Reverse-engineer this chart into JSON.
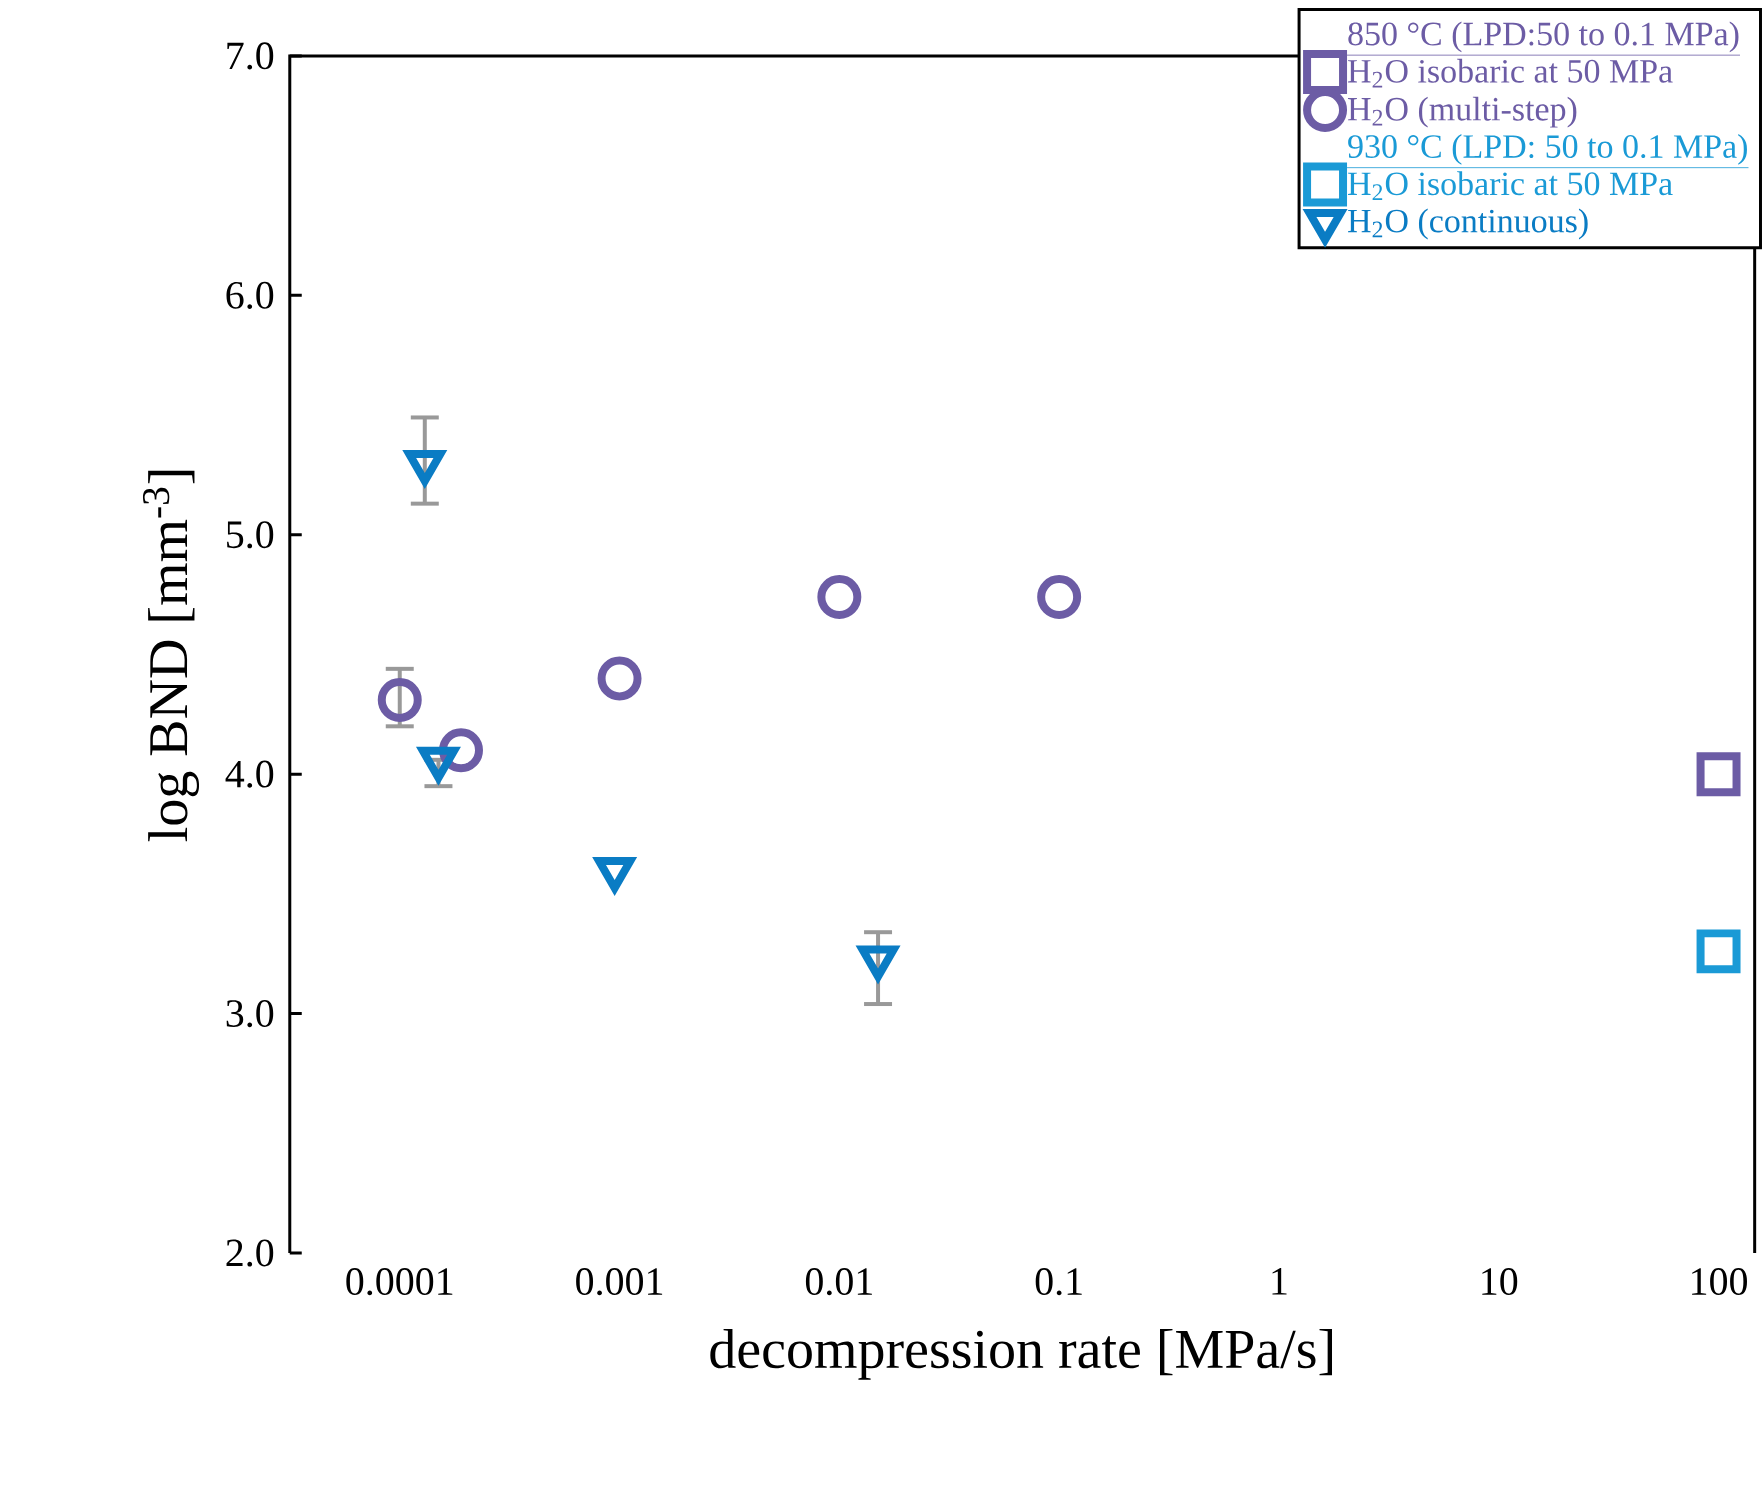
{
  "chart_data": {
    "type": "scatter",
    "xlabel": "decompression rate [MPa/s]",
    "ylabel": "log BND [mm$^{-3}$]",
    "log": "x",
    "xlim": [
      3.16e-05,
      146
    ],
    "ylim": [
      2,
      7
    ],
    "xticks": [
      {
        "value": 0.0001,
        "label": "0.0001"
      },
      {
        "value": 0.001,
        "label": "0.001"
      },
      {
        "value": 0.01,
        "label": "0.01"
      },
      {
        "value": 0.1,
        "label": "0.1"
      },
      {
        "value": 1,
        "label": "1"
      },
      {
        "value": 10,
        "label": "10"
      },
      {
        "value": 100,
        "label": "100"
      }
    ],
    "yticks": [
      {
        "value": 2,
        "label": "2.0"
      },
      {
        "value": 3,
        "label": "3.0"
      },
      {
        "value": 4,
        "label": "4.0"
      },
      {
        "value": 5,
        "label": "5.0"
      },
      {
        "value": 6,
        "label": "6.0"
      },
      {
        "value": 7,
        "label": "7.0"
      }
    ],
    "legend": "top right",
    "annotations": [
      "850 °C (LPD:50 to 0.1 MPa)",
      "930 °C (LPD: 50 to 0.1 MPa)"
    ],
    "series": [
      {
        "name": "H$_{2}$O isobaric at 50 MPa",
        "color": "#6c5ca5",
        "marker": "square",
        "x": [
          100
        ],
        "values": [
          4.0
        ]
      },
      {
        "name": "H$_{2}$O (multi-step)",
        "color": "#6c5ca5",
        "marker": "circle",
        "x": [
          0.0001,
          0.00019,
          0.001,
          0.01,
          0.1
        ],
        "values": [
          4.31,
          4.1,
          4.4,
          4.74,
          4.74
        ],
        "errors": [
          [
            4.2,
            4.44
          ],
          null,
          null,
          null,
          null
        ]
      },
      {
        "name": "H$_{2}$O isobaric at 50 MPa",
        "color": "#1a9ad6",
        "marker": "square",
        "x": [
          100
        ],
        "values": [
          3.26
        ]
      },
      {
        "name": "H$_{2}$O (continuous)",
        "color": "#0a7cc4",
        "marker": "triangle",
        "x": [
          0.00013,
          0.00015,
          0.00095,
          0.015
        ],
        "values": [
          5.3,
          4.06,
          3.6,
          3.23
        ],
        "errors": [
          [
            5.13,
            5.49
          ],
          [
            3.95,
            4.06
          ],
          null,
          [
            3.04,
            3.34
          ]
        ]
      }
    ]
  }
}
